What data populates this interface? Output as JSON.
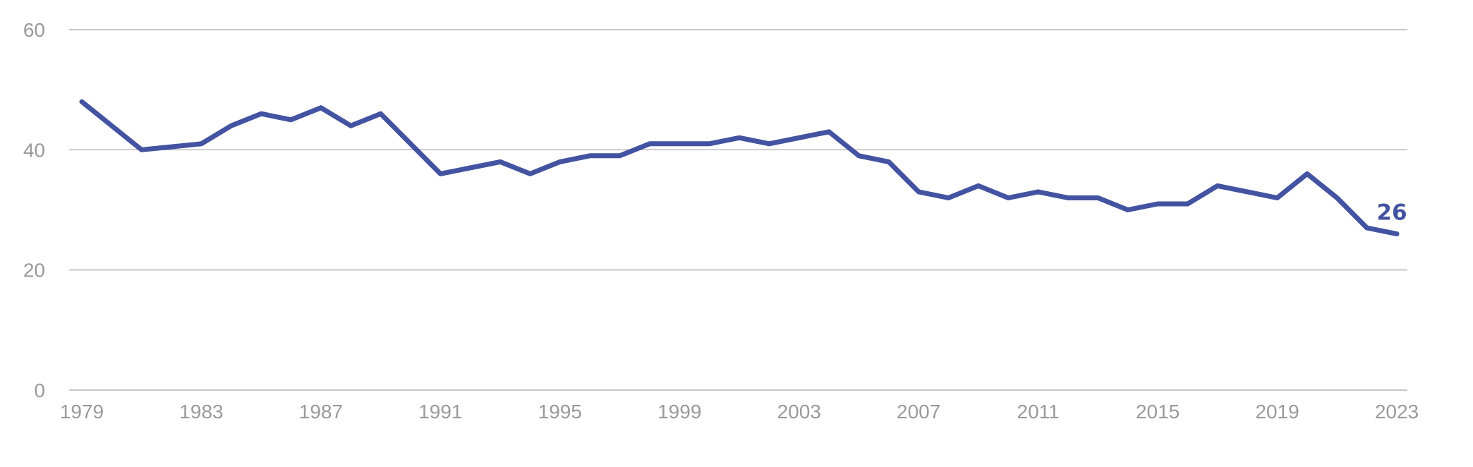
{
  "chart_data": {
    "type": "line",
    "x": [
      1979,
      1980,
      1981,
      1982,
      1983,
      1984,
      1985,
      1986,
      1987,
      1988,
      1989,
      1990,
      1991,
      1992,
      1993,
      1994,
      1995,
      1996,
      1997,
      1998,
      1999,
      2000,
      2001,
      2002,
      2003,
      2004,
      2005,
      2006,
      2007,
      2008,
      2009,
      2010,
      2011,
      2012,
      2013,
      2014,
      2015,
      2016,
      2017,
      2018,
      2019,
      2020,
      2021,
      2022,
      2023
    ],
    "series": [
      {
        "name": "",
        "color": "#4353a1",
        "values": [
          48,
          44,
          40,
          40.5,
          41,
          44,
          46,
          45,
          47,
          44,
          46,
          41,
          36,
          37,
          38,
          36,
          38,
          39,
          39,
          41,
          41,
          41,
          42,
          41,
          42,
          43,
          39,
          38,
          33,
          32,
          34,
          32,
          33,
          32,
          32,
          30,
          31,
          31,
          34,
          33,
          32,
          36,
          32,
          27,
          26
        ]
      }
    ],
    "xticks": [
      "1979",
      "1983",
      "1987",
      "1991",
      "1995",
      "1999",
      "2003",
      "2007",
      "2011",
      "2015",
      "2019",
      "2023"
    ],
    "yticks": [
      "0",
      "20",
      "40",
      "60"
    ],
    "xlim": [
      1979,
      2023
    ],
    "ylim": [
      0,
      60
    ],
    "end_label": "26",
    "grid": true,
    "title": "",
    "xlabel": "",
    "ylabel": ""
  }
}
